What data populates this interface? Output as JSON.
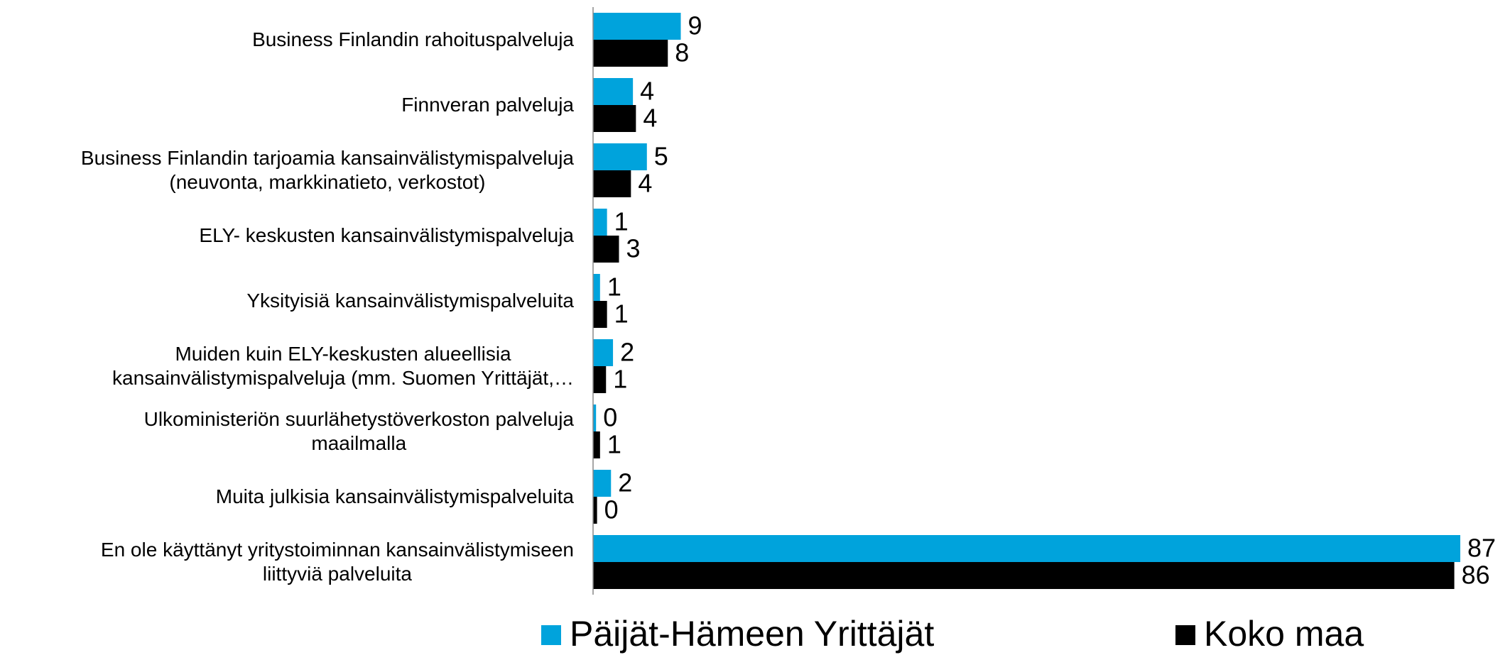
{
  "chart_data": {
    "type": "barh",
    "categories": [
      "Business Finlandin rahoituspalveluja",
      "Finnveran palveluja",
      "Business Finlandin tarjoamia kansainvälistymispalveluja\n(neuvonta, markkinatieto, verkostot)",
      "ELY- keskusten kansainvälistymispalveluja",
      "Yksityisiä kansainvälistymispalveluita",
      "Muiden kuin ELY-keskusten alueellisia\nkansainvälistymispalveluja (mm. Suomen Yrittäjät,…",
      "Ulkoministeriön suurlähetystöverkoston palveluja\nmaailmalla",
      "Muita julkisia kansainvälistymispalveluita",
      "En ole käyttänyt yritystoiminnan kansainvälistymiseen\nliittyviä palveluita"
    ],
    "series": [
      {
        "name": "Päijät-Hämeen Yrittäjät",
        "color": "#00a3dc",
        "values": [
          8.8,
          4.0,
          5.4,
          1.4,
          0.7,
          2.0,
          0.3,
          1.8,
          87
        ],
        "value_labels": [
          "9",
          "4",
          "5",
          "1",
          "1",
          "2",
          "0",
          "2",
          "87"
        ]
      },
      {
        "name": "Koko maa",
        "color": "#000000",
        "values": [
          7.5,
          4.3,
          3.8,
          2.6,
          1.4,
          1.3,
          0.7,
          0.4,
          86.4
        ],
        "value_labels": [
          "8",
          "4",
          "4",
          "3",
          "1",
          "1",
          "1",
          "0",
          "86"
        ]
      }
    ],
    "xlim": [
      0,
      87
    ]
  }
}
